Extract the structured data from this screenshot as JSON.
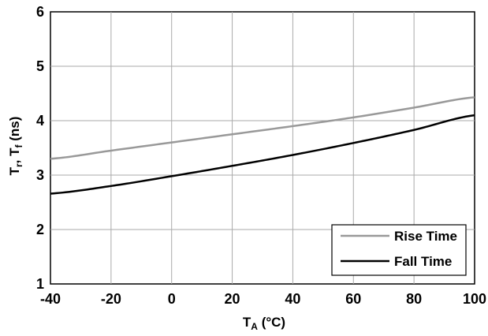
{
  "chart_data": {
    "type": "line",
    "xlabel": "T",
    "xlabel_sub": "A",
    "xlabel_unit": " (°C)",
    "ylabel": {
      "t1": "T",
      "s1": "r",
      "sep": ", ",
      "t2": "T",
      "s2": "f",
      "unit": " (ns)"
    },
    "xlim": [
      -40,
      100
    ],
    "ylim": [
      1,
      6
    ],
    "xticks": [
      "-40",
      "-20",
      "0",
      "20",
      "40",
      "60",
      "80",
      "100"
    ],
    "yticks": [
      "1",
      "2",
      "3",
      "4",
      "5",
      "6"
    ],
    "grid": true,
    "legend_position": "bottom-right",
    "series": [
      {
        "name": "Rise Time",
        "color": "#999999",
        "x": [
          -40,
          -20,
          0,
          20,
          40,
          60,
          80,
          100
        ],
        "y": [
          3.3,
          3.45,
          3.6,
          3.75,
          3.9,
          4.06,
          4.24,
          4.43
        ]
      },
      {
        "name": "Fall Time",
        "color": "#000000",
        "x": [
          -40,
          -20,
          0,
          20,
          40,
          60,
          80,
          100
        ],
        "y": [
          2.66,
          2.8,
          2.98,
          3.17,
          3.37,
          3.59,
          3.83,
          4.1
        ]
      }
    ]
  }
}
